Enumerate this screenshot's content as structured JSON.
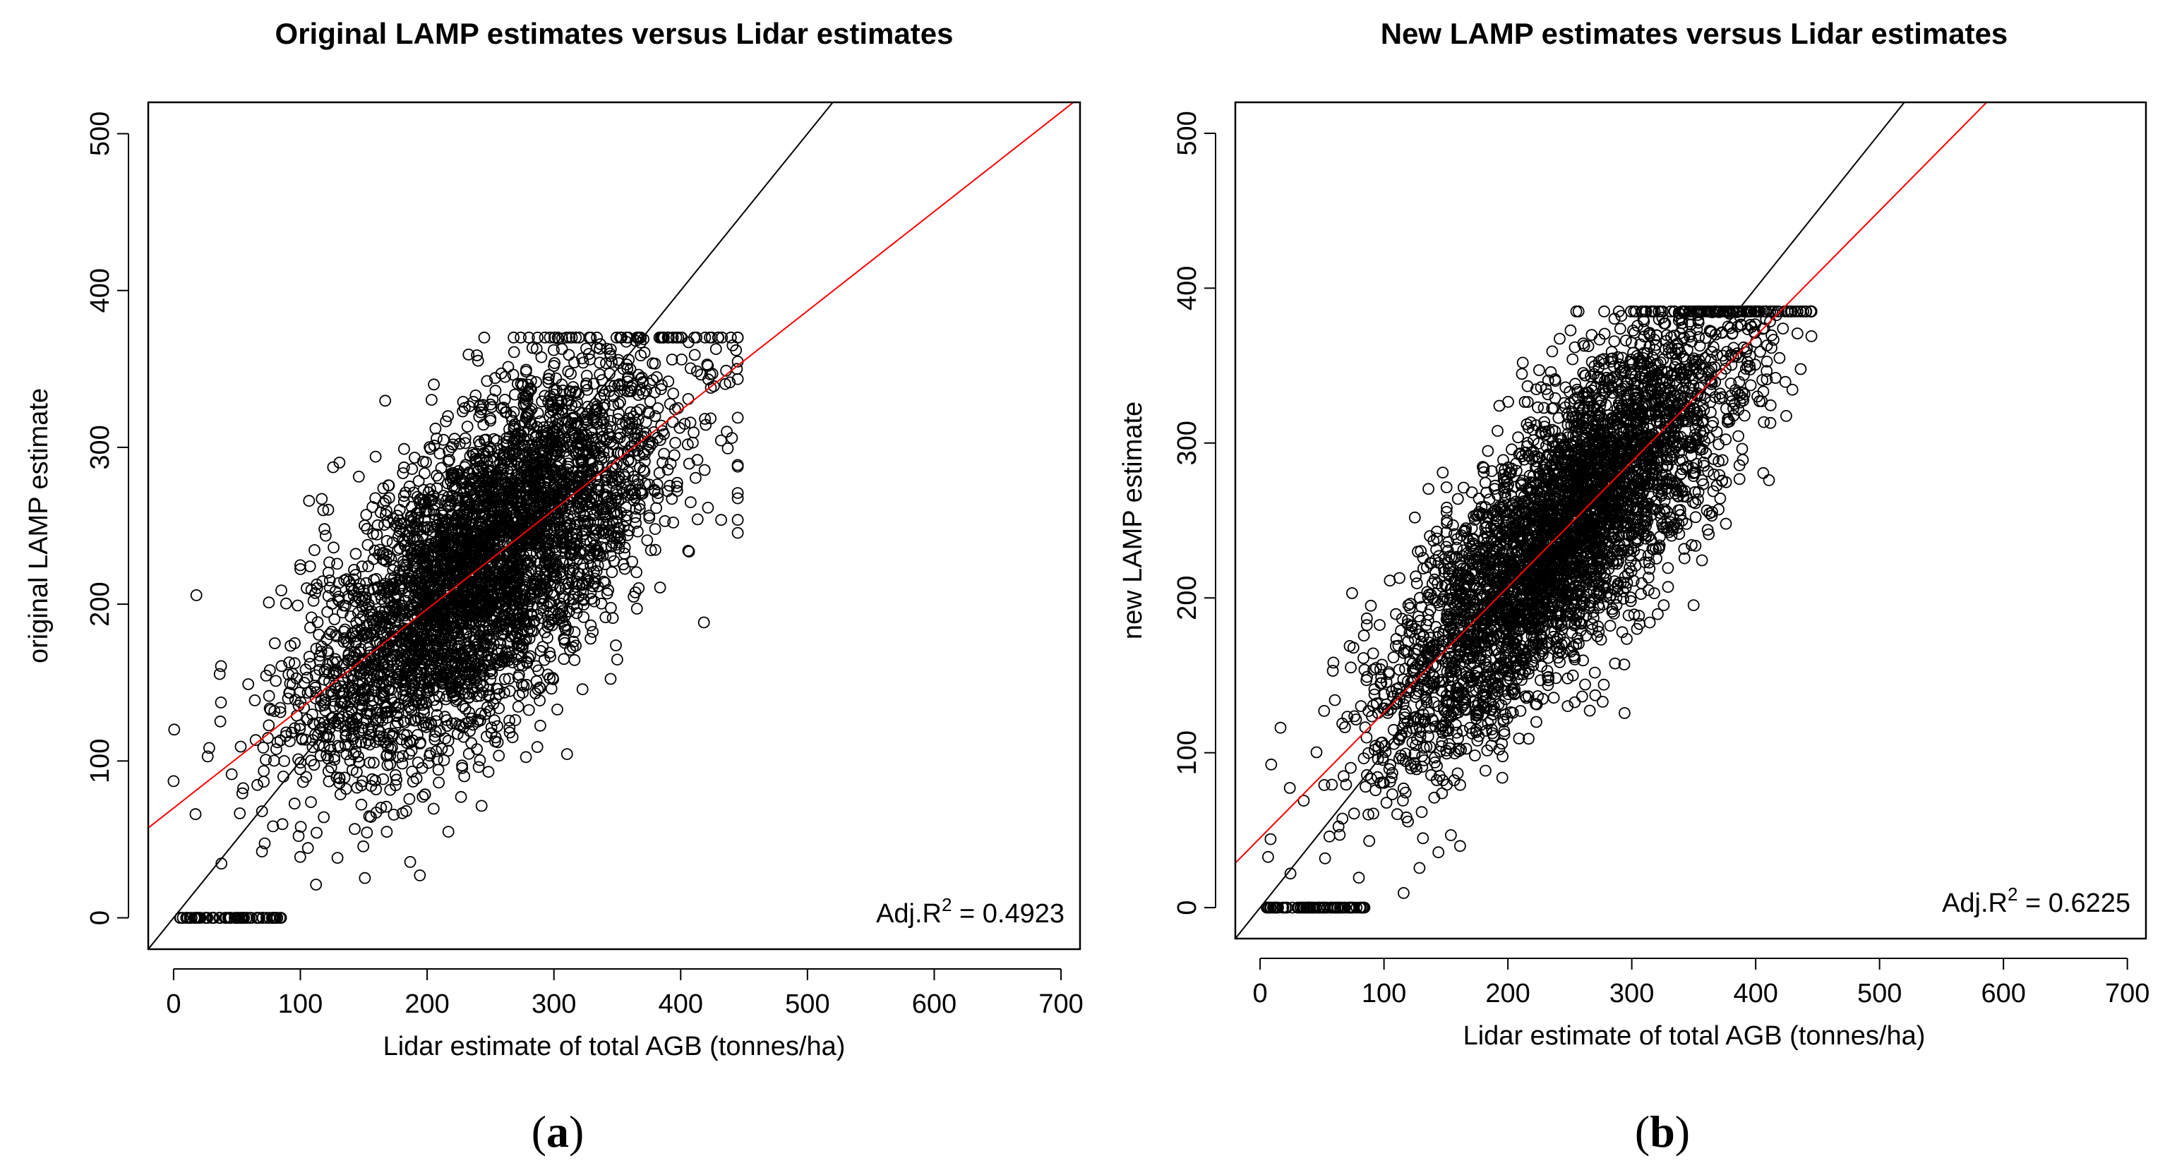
{
  "chart_data": [
    {
      "type": "scatter",
      "panel_label": "a",
      "title": "Original LAMP estimates versus Lidar estimates",
      "xlabel": "Lidar estimate of total AGB (tonnes/ha)",
      "ylabel": "original LAMP estimate",
      "xlim": [
        -20,
        715
      ],
      "ylim": [
        -20,
        520
      ],
      "xticks": [
        0,
        100,
        200,
        300,
        400,
        500,
        600,
        700
      ],
      "yticks": [
        0,
        100,
        200,
        300,
        400,
        500
      ],
      "adj_r2_label": "Adj.R",
      "adj_r2_value": "0.4923",
      "reference_line": {
        "name": "1:1 line",
        "intercept": 0,
        "slope": 1,
        "color": "#000000"
      },
      "fit_line": {
        "name": "regression fit",
        "intercept": 70,
        "slope": 0.634,
        "color": "#ff0000"
      },
      "point_cloud": {
        "n": 4200,
        "x_mean": 245,
        "x_sd": 72,
        "y_intercept": 70,
        "y_slope": 0.634,
        "y_resid_sd": 47,
        "x_range": [
          0,
          445
        ],
        "y_range": [
          0,
          370
        ],
        "zero_cluster": {
          "n": 70,
          "x_range": [
            5,
            85
          ],
          "y": 0
        }
      },
      "grid": false,
      "marker": "open circle"
    },
    {
      "type": "scatter",
      "panel_label": "b",
      "title": "New LAMP estimates versus Lidar estimates",
      "xlabel": "Lidar estimate of total AGB (tonnes/ha)",
      "ylabel": "new LAMP estimate",
      "xlim": [
        -20,
        715
      ],
      "ylim": [
        -20,
        520
      ],
      "xticks": [
        0,
        100,
        200,
        300,
        400,
        500,
        600,
        700
      ],
      "yticks": [
        0,
        100,
        200,
        300,
        400,
        500
      ],
      "adj_r2_label": "Adj.R",
      "adj_r2_value": "0.6225",
      "reference_line": {
        "name": "1:1 line",
        "intercept": 0,
        "slope": 1,
        "color": "#000000"
      },
      "fit_line": {
        "name": "regression fit",
        "intercept": 45,
        "slope": 0.81,
        "color": "#ff0000"
      },
      "point_cloud": {
        "n": 4200,
        "x_mean": 245,
        "x_sd": 72,
        "y_intercept": 45,
        "y_slope": 0.81,
        "y_resid_sd": 43,
        "x_range": [
          0,
          445
        ],
        "y_range": [
          0,
          385
        ],
        "zero_cluster": {
          "n": 70,
          "x_range": [
            5,
            85
          ],
          "y": 0
        }
      },
      "grid": false,
      "marker": "open circle"
    }
  ],
  "colors": {
    "points": "#000000",
    "axes": "#000000",
    "fit": "#ff0000",
    "reference": "#000000"
  }
}
